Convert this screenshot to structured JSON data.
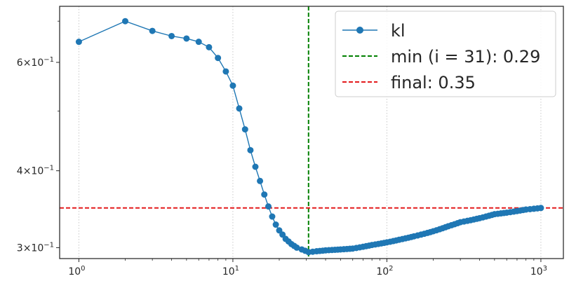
{
  "chart_data": {
    "type": "line",
    "title": "",
    "xlabel": "",
    "ylabel": "",
    "x_scale": "log",
    "y_scale": "log",
    "xlim": [
      0.75,
      1400
    ],
    "ylim": [
      0.288,
      0.74
    ],
    "x_ticks": [
      {
        "value": 1,
        "base": "10",
        "exp": "0"
      },
      {
        "value": 10,
        "base": "10",
        "exp": "1"
      },
      {
        "value": 100,
        "base": "10",
        "exp": "2"
      },
      {
        "value": 1000,
        "base": "10",
        "exp": "3"
      }
    ],
    "y_ticks": [
      {
        "value": 0.3,
        "mantissa": "3",
        "exp": "−1"
      },
      {
        "value": 0.4,
        "mantissa": "4",
        "exp": "−1"
      },
      {
        "value": 0.6,
        "mantissa": "6",
        "exp": "−1"
      }
    ],
    "y_minor_ticks": [
      0.5,
      0.7
    ],
    "grid": "x-major dotted",
    "legend_position": "top-right",
    "series": [
      {
        "name": "kl",
        "color": "#1f77b4",
        "marker": "circle",
        "points": [
          [
            1,
            0.648
          ],
          [
            2,
            0.7
          ],
          [
            3,
            0.675
          ],
          [
            4,
            0.662
          ],
          [
            5,
            0.656
          ],
          [
            6,
            0.648
          ],
          [
            7,
            0.635
          ],
          [
            8,
            0.61
          ],
          [
            9,
            0.58
          ],
          [
            10,
            0.55
          ],
          [
            11,
            0.505
          ],
          [
            12,
            0.467
          ],
          [
            13,
            0.432
          ],
          [
            14,
            0.406
          ],
          [
            15,
            0.385
          ],
          [
            16,
            0.366
          ],
          [
            17,
            0.35
          ],
          [
            18,
            0.337
          ],
          [
            19,
            0.327
          ],
          [
            20,
            0.32
          ],
          [
            22,
            0.31
          ],
          [
            24,
            0.304
          ],
          [
            26,
            0.3
          ],
          [
            28,
            0.298
          ],
          [
            31,
            0.295
          ],
          [
            35,
            0.296
          ],
          [
            40,
            0.297
          ],
          [
            50,
            0.298
          ],
          [
            60,
            0.299
          ],
          [
            70,
            0.301
          ],
          [
            80,
            0.303
          ],
          [
            100,
            0.306
          ],
          [
            120,
            0.309
          ],
          [
            150,
            0.313
          ],
          [
            200,
            0.319
          ],
          [
            250,
            0.325
          ],
          [
            300,
            0.33
          ],
          [
            400,
            0.335
          ],
          [
            500,
            0.34
          ],
          [
            600,
            0.342
          ],
          [
            700,
            0.344
          ],
          [
            800,
            0.346
          ],
          [
            900,
            0.347
          ],
          [
            1000,
            0.348
          ]
        ]
      }
    ],
    "reference_lines": [
      {
        "orientation": "vertical",
        "value": 31,
        "label": "min (i = 31): 0.29",
        "color": "#008000",
        "style": "dashed"
      },
      {
        "orientation": "horizontal",
        "value": 0.348,
        "label": "final: 0.35",
        "color": "#e41a1c",
        "style": "dashed"
      }
    ]
  },
  "legend": {
    "entries": [
      "kl",
      "min (i = 31): 0.29",
      "final: 0.35"
    ]
  }
}
